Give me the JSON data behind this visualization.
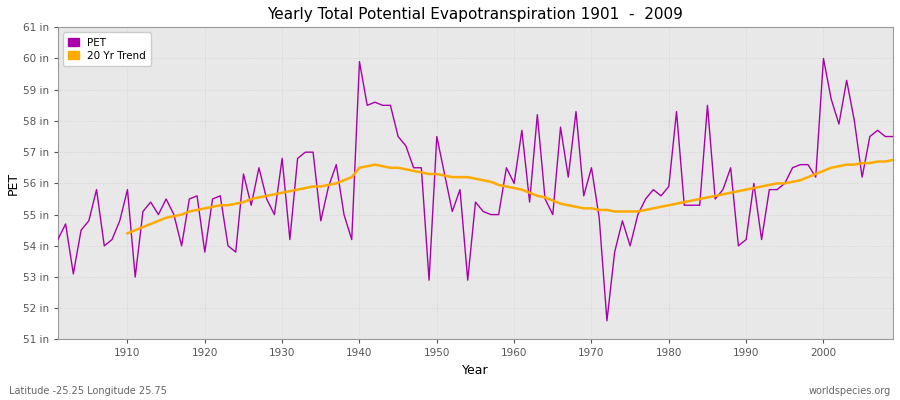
{
  "title": "Yearly Total Potential Evapotranspiration 1901  -  2009",
  "xlabel": "Year",
  "ylabel": "PET",
  "subtitle_left": "Latitude -25.25 Longitude 25.75",
  "subtitle_right": "worldspecies.org",
  "pet_color": "#aa00aa",
  "trend_color": "#ffaa00",
  "fig_bg_color": "#ffffff",
  "plot_bg_color": "#e8e8e8",
  "ylim_min": 51,
  "ylim_max": 61,
  "years": [
    1901,
    1902,
    1903,
    1904,
    1905,
    1906,
    1907,
    1908,
    1909,
    1910,
    1911,
    1912,
    1913,
    1914,
    1915,
    1916,
    1917,
    1918,
    1919,
    1920,
    1921,
    1922,
    1923,
    1924,
    1925,
    1926,
    1927,
    1928,
    1929,
    1930,
    1931,
    1932,
    1933,
    1934,
    1935,
    1936,
    1937,
    1938,
    1939,
    1940,
    1941,
    1942,
    1943,
    1944,
    1945,
    1946,
    1947,
    1948,
    1949,
    1950,
    1951,
    1952,
    1953,
    1954,
    1955,
    1956,
    1957,
    1958,
    1959,
    1960,
    1961,
    1962,
    1963,
    1964,
    1965,
    1966,
    1967,
    1968,
    1969,
    1970,
    1971,
    1972,
    1973,
    1974,
    1975,
    1976,
    1977,
    1978,
    1979,
    1980,
    1981,
    1982,
    1983,
    1984,
    1985,
    1986,
    1987,
    1988,
    1989,
    1990,
    1991,
    1992,
    1993,
    1994,
    1995,
    1996,
    1997,
    1998,
    1999,
    2000,
    2001,
    2002,
    2003,
    2004,
    2005,
    2006,
    2007,
    2008,
    2009
  ],
  "pet_values": [
    54.2,
    54.7,
    53.1,
    54.5,
    54.8,
    55.8,
    54.0,
    54.2,
    54.8,
    55.8,
    53.0,
    55.1,
    55.4,
    55.0,
    55.5,
    55.0,
    54.0,
    55.5,
    55.6,
    53.8,
    55.5,
    55.6,
    54.0,
    53.8,
    56.3,
    55.3,
    56.5,
    55.5,
    55.0,
    56.8,
    54.2,
    56.8,
    57.0,
    57.0,
    54.8,
    55.9,
    56.6,
    55.0,
    54.2,
    59.9,
    58.5,
    58.6,
    58.5,
    58.5,
    57.5,
    57.2,
    56.5,
    56.5,
    52.9,
    57.5,
    56.3,
    55.1,
    55.8,
    52.9,
    55.4,
    55.1,
    55.0,
    55.0,
    56.5,
    56.0,
    57.7,
    55.4,
    58.2,
    55.5,
    55.0,
    57.8,
    56.2,
    58.3,
    55.6,
    56.5,
    54.9,
    51.6,
    53.8,
    54.8,
    54.0,
    55.0,
    55.5,
    55.8,
    55.6,
    55.9,
    58.3,
    55.3,
    55.3,
    55.3,
    58.5,
    55.5,
    55.8,
    56.5,
    54.0,
    54.2,
    56.0,
    54.2,
    55.8,
    55.8,
    56.0,
    56.5,
    56.6,
    56.6,
    56.2,
    60.0,
    58.7,
    57.9,
    59.3,
    58.0,
    56.2,
    57.5,
    57.7,
    57.5,
    57.5
  ],
  "trend_years": [
    1910,
    1911,
    1912,
    1913,
    1914,
    1915,
    1916,
    1917,
    1918,
    1919,
    1920,
    1921,
    1922,
    1923,
    1924,
    1925,
    1926,
    1927,
    1928,
    1929,
    1930,
    1931,
    1932,
    1933,
    1934,
    1935,
    1936,
    1937,
    1938,
    1939,
    1940,
    1941,
    1942,
    1943,
    1944,
    1945,
    1946,
    1947,
    1948,
    1949,
    1950,
    1951,
    1952,
    1953,
    1954,
    1955,
    1956,
    1957,
    1958,
    1959,
    1960,
    1961,
    1962,
    1963,
    1964,
    1965,
    1966,
    1967,
    1968,
    1969,
    1970,
    1971,
    1972,
    1973,
    1974,
    1975,
    1976,
    1977,
    1978,
    1979,
    1980,
    1981,
    1982,
    1983,
    1984,
    1985,
    1986,
    1987,
    1988,
    1989,
    1990,
    1991,
    1992,
    1993,
    1994,
    1995,
    1996,
    1997,
    1998,
    1999,
    2000,
    2001,
    2002,
    2003,
    2004,
    2005,
    2006,
    2007,
    2008,
    2009
  ],
  "trend_values": [
    54.4,
    54.5,
    54.6,
    54.7,
    54.8,
    54.9,
    54.95,
    55.0,
    55.1,
    55.15,
    55.2,
    55.25,
    55.3,
    55.3,
    55.35,
    55.4,
    55.5,
    55.55,
    55.6,
    55.65,
    55.7,
    55.75,
    55.8,
    55.85,
    55.9,
    55.9,
    55.95,
    56.0,
    56.1,
    56.2,
    56.5,
    56.55,
    56.6,
    56.55,
    56.5,
    56.5,
    56.45,
    56.4,
    56.35,
    56.3,
    56.3,
    56.25,
    56.2,
    56.2,
    56.2,
    56.15,
    56.1,
    56.05,
    55.95,
    55.9,
    55.85,
    55.8,
    55.7,
    55.6,
    55.55,
    55.45,
    55.35,
    55.3,
    55.25,
    55.2,
    55.2,
    55.15,
    55.15,
    55.1,
    55.1,
    55.1,
    55.1,
    55.15,
    55.2,
    55.25,
    55.3,
    55.35,
    55.4,
    55.45,
    55.5,
    55.55,
    55.6,
    55.65,
    55.7,
    55.75,
    55.8,
    55.85,
    55.9,
    55.95,
    56.0,
    56.0,
    56.05,
    56.1,
    56.2,
    56.3,
    56.4,
    56.5,
    56.55,
    56.6,
    56.6,
    56.65,
    56.65,
    56.7,
    56.7,
    56.75
  ]
}
